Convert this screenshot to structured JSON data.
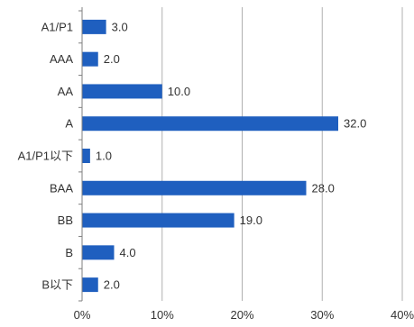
{
  "chart_data": {
    "type": "bar",
    "orientation": "horizontal",
    "title": "",
    "xlabel": "",
    "ylabel": "",
    "categories": [
      "A1/P1",
      "AAA",
      "AA",
      "A",
      "A1/P1以下",
      "BAA",
      "BB",
      "B",
      "B以下"
    ],
    "values": [
      3.0,
      2.0,
      10.0,
      32.0,
      1.0,
      28.0,
      19.0,
      4.0,
      2.0
    ],
    "value_labels": [
      "3.0",
      "2.0",
      "10.0",
      "32.0",
      "1.0",
      "28.0",
      "19.0",
      "4.0",
      "2.0"
    ],
    "xlim": [
      0,
      40
    ],
    "x_ticks": [
      0,
      10,
      20,
      30,
      40
    ],
    "x_tick_labels": [
      "0%",
      "10%",
      "20%",
      "30%",
      "40%"
    ],
    "grid": "vertical",
    "legend": "none",
    "colors": {
      "bar": "#1f5fbf",
      "grid": "#b0b0b0",
      "axis": "#7f7f7f",
      "text": "#333333"
    }
  }
}
